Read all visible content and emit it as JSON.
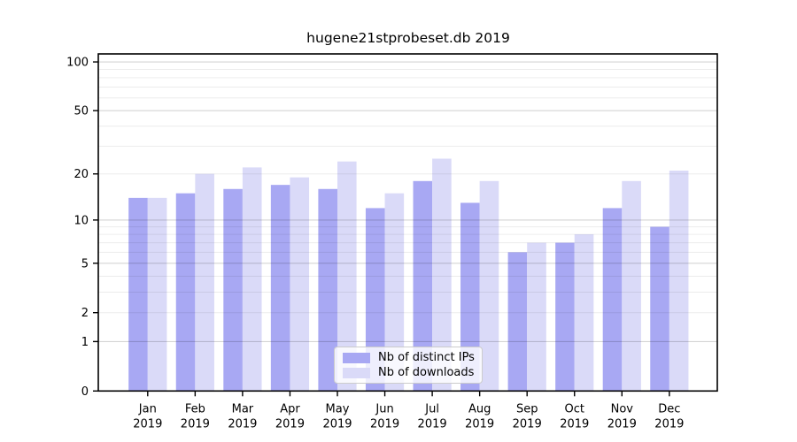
{
  "header": {
    "title": "hugene21stprobeset.db 2019"
  },
  "chart_data": {
    "type": "bar",
    "title": "hugene21stprobeset.db 2019",
    "scale": "log1p",
    "categories": [
      "Jan",
      "Feb",
      "Mar",
      "Apr",
      "May",
      "Jun",
      "Jul",
      "Aug",
      "Sep",
      "Oct",
      "Nov",
      "Dec"
    ],
    "year": "2019",
    "series": [
      {
        "name": "Nb of distinct IPs",
        "color": "#a8a8f3",
        "values": [
          14,
          15,
          16,
          17,
          16,
          12,
          18,
          13,
          6,
          7,
          12,
          9
        ]
      },
      {
        "name": "Nb of downloads",
        "color": "#dadaf8",
        "values": [
          14,
          20,
          22,
          19,
          24,
          15,
          25,
          18,
          7,
          8,
          18,
          21
        ]
      }
    ],
    "yticks": [
      0,
      1,
      2,
      5,
      10,
      20,
      50,
      100
    ],
    "ylim": [
      0,
      112
    ],
    "xlabel": "",
    "ylabel": "",
    "grid": "on",
    "gridlines_minor": [
      2,
      3,
      4,
      6,
      7,
      8,
      9,
      20,
      30,
      40,
      60,
      70,
      80,
      90
    ],
    "gridlines_major": [
      1,
      5,
      10,
      50,
      100
    ],
    "legend_position": "inside lower-center",
    "colors": {
      "bar_ips": "#a8a8f3",
      "bar_downloads": "#dadaf8",
      "grid_minor": "rgba(0,0,0,0.075)",
      "grid_major": "rgba(0,0,0,0.17)",
      "axis": "#000000",
      "background": "#ffffff"
    }
  }
}
